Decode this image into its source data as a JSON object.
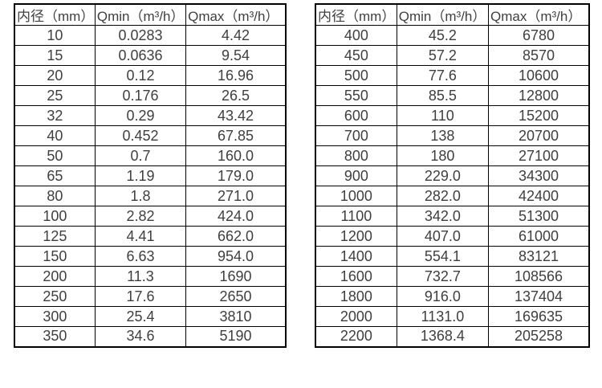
{
  "colors": {
    "background": "#ffffff",
    "table_border": "#000000",
    "text": "#3f3f3f"
  },
  "tables": [
    {
      "title": "small-diameter-flow-ranges",
      "headers": [
        "内径（mm）",
        "Qmin（m³/h）",
        "Qmax（m³/h）"
      ],
      "rows": [
        [
          "10",
          "0.0283",
          "4.42"
        ],
        [
          "15",
          "0.0636",
          "9.54"
        ],
        [
          "20",
          "0.12",
          "16.96"
        ],
        [
          "25",
          "0.176",
          "26.5"
        ],
        [
          "32",
          "0.29",
          "43.42"
        ],
        [
          "40",
          "0.452",
          "67.85"
        ],
        [
          "50",
          "0.7",
          "160.0"
        ],
        [
          "65",
          "1.19",
          "179.0"
        ],
        [
          "80",
          "1.8",
          "271.0"
        ],
        [
          "100",
          "2.82",
          "424.0"
        ],
        [
          "125",
          "4.41",
          "662.0"
        ],
        [
          "150",
          "6.63",
          "954.0"
        ],
        [
          "200",
          "11.3",
          "1690"
        ],
        [
          "250",
          "17.6",
          "2650"
        ],
        [
          "300",
          "25.4",
          "3810"
        ],
        [
          "350",
          "34.6",
          "5190"
        ]
      ]
    },
    {
      "title": "large-diameter-flow-ranges",
      "headers": [
        "内径（mm）",
        "Qmin（m³/h）",
        "Qmax（m³/h）"
      ],
      "rows": [
        [
          "400",
          "45.2",
          "6780"
        ],
        [
          "450",
          "57.2",
          "8570"
        ],
        [
          "500",
          "77.6",
          "10600"
        ],
        [
          "550",
          "85.5",
          "12800"
        ],
        [
          "600",
          "110",
          "15200"
        ],
        [
          "700",
          "138",
          "20700"
        ],
        [
          "800",
          "180",
          "27100"
        ],
        [
          "900",
          "229.0",
          "34300"
        ],
        [
          "1000",
          "282.0",
          "42400"
        ],
        [
          "1100",
          "342.0",
          "51300"
        ],
        [
          "1200",
          "407.0",
          "61000"
        ],
        [
          "1400",
          "554.1",
          "83121"
        ],
        [
          "1600",
          "732.7",
          "108566"
        ],
        [
          "1800",
          "916.0",
          "137404"
        ],
        [
          "2000",
          "1131.0",
          "169635"
        ],
        [
          "2200",
          "1368.4",
          "205258"
        ]
      ]
    }
  ]
}
